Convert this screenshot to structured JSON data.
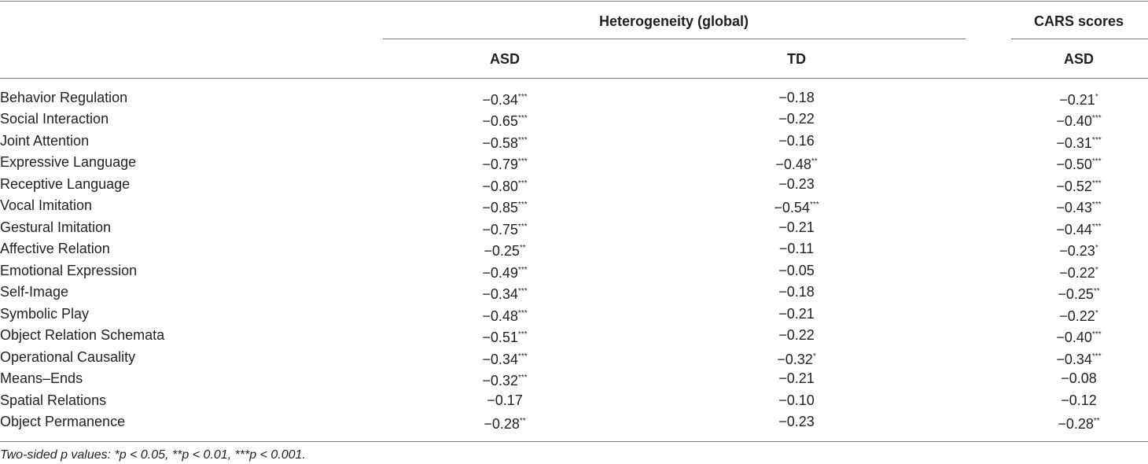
{
  "table": {
    "group_headers": [
      "Heterogeneity (global)",
      "CARS scores"
    ],
    "column_headers": [
      "ASD",
      "TD",
      "ASD"
    ],
    "rows": [
      {
        "label": "Behavior Regulation",
        "cells": [
          [
            "−0.34",
            "***"
          ],
          [
            "−0.18"
          ],
          [
            "−0.21",
            "*"
          ]
        ]
      },
      {
        "label": "Social Interaction",
        "cells": [
          [
            "−0.65",
            "***"
          ],
          [
            "−0.22"
          ],
          [
            "−0.40",
            "***"
          ]
        ]
      },
      {
        "label": "Joint Attention",
        "cells": [
          [
            "−0.58",
            "***"
          ],
          [
            "−0.16"
          ],
          [
            "−0.31",
            "***"
          ]
        ]
      },
      {
        "label": "Expressive Language",
        "cells": [
          [
            "−0.79",
            "***"
          ],
          [
            "−0.48",
            "**"
          ],
          [
            "−0.50",
            "***"
          ]
        ]
      },
      {
        "label": "Receptive Language",
        "cells": [
          [
            "−0.80",
            "***"
          ],
          [
            "−0.23"
          ],
          [
            "−0.52",
            "***"
          ]
        ]
      },
      {
        "label": "Vocal Imitation",
        "cells": [
          [
            "−0.85",
            "***"
          ],
          [
            "−0.54",
            "***"
          ],
          [
            "−0.43",
            "***"
          ]
        ]
      },
      {
        "label": "Gestural Imitation",
        "cells": [
          [
            "−0.75",
            "***"
          ],
          [
            "−0.21"
          ],
          [
            "−0.44",
            "***"
          ]
        ]
      },
      {
        "label": "Affective Relation",
        "cells": [
          [
            "−0.25",
            "**"
          ],
          [
            "−0.11"
          ],
          [
            "−0.23",
            "*"
          ]
        ]
      },
      {
        "label": "Emotional Expression",
        "cells": [
          [
            "−0.49",
            "***"
          ],
          [
            "−0.05"
          ],
          [
            "−0.22",
            "*"
          ]
        ]
      },
      {
        "label": "Self-Image",
        "cells": [
          [
            "−0.34",
            "***"
          ],
          [
            "−0.18"
          ],
          [
            "−0.25",
            "**"
          ]
        ]
      },
      {
        "label": "Symbolic Play",
        "cells": [
          [
            "−0.48",
            "***"
          ],
          [
            "−0.21"
          ],
          [
            "−0.22",
            "*"
          ]
        ]
      },
      {
        "label": "Object Relation Schemata",
        "cells": [
          [
            "−0.51",
            "***"
          ],
          [
            "−0.22"
          ],
          [
            "−0.40",
            "***"
          ]
        ]
      },
      {
        "label": "Operational Causality",
        "cells": [
          [
            "−0.34",
            "***"
          ],
          [
            "−0.32",
            "*"
          ],
          [
            "−0.34",
            "***"
          ]
        ]
      },
      {
        "label": "Means–Ends",
        "cells": [
          [
            "−0.32",
            "***"
          ],
          [
            "−0.21"
          ],
          [
            "−0.08"
          ]
        ]
      },
      {
        "label": "Spatial Relations",
        "cells": [
          [
            "−0.17"
          ],
          [
            "−0.10"
          ],
          [
            "−0.12"
          ]
        ]
      },
      {
        "label": "Object Permanence",
        "cells": [
          [
            "−0.28",
            "**"
          ],
          [
            "−0.23"
          ],
          [
            "−0.28",
            "**"
          ]
        ]
      }
    ],
    "footnote": "Two-sided p values: *p < 0.05, **p < 0.01, ***p < 0.001."
  }
}
